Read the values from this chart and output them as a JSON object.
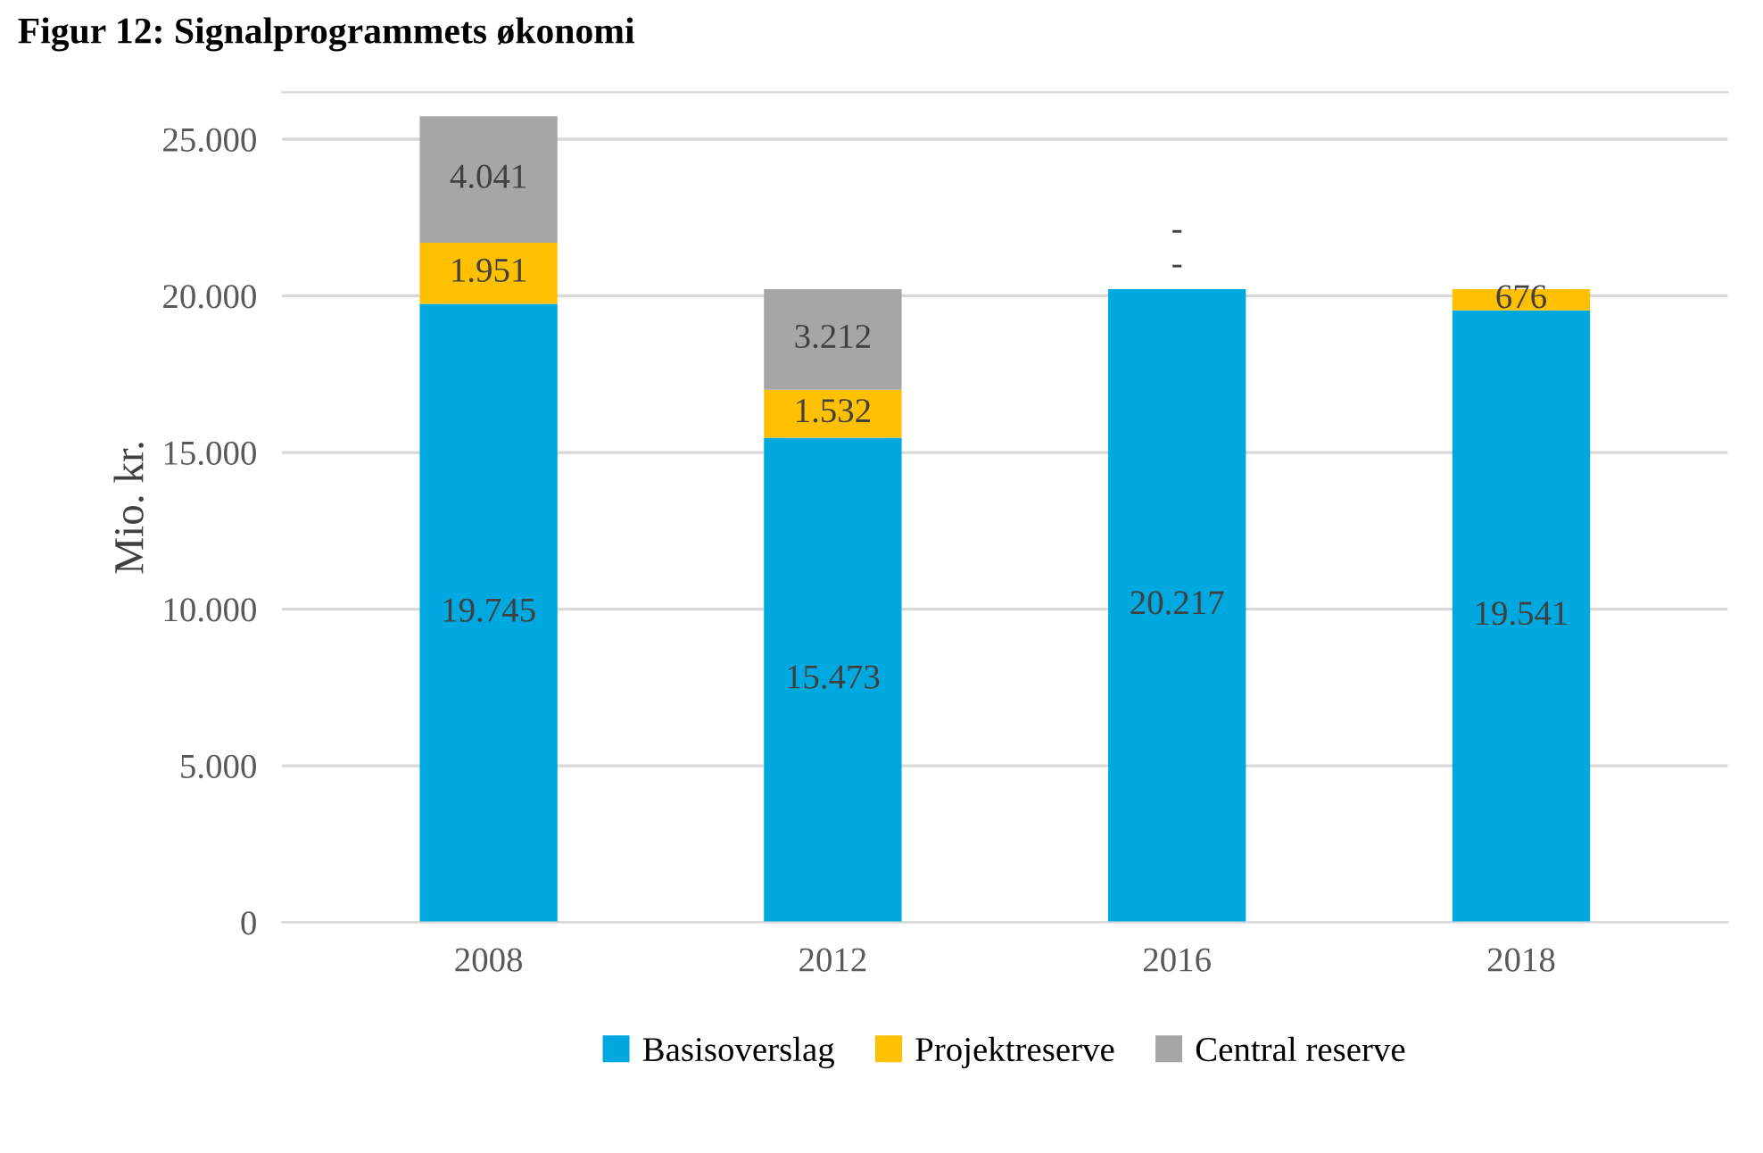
{
  "chart_data": {
    "type": "bar",
    "stacked": true,
    "title": "Figur 12: Signalprogrammets økonomi",
    "ylabel": "Mio. kr.",
    "categories": [
      "2008",
      "2012",
      "2016",
      "2018"
    ],
    "series": [
      {
        "name": "Basisoverslag",
        "color": "#00a8e0",
        "values": [
          19745,
          15473,
          20217,
          19541
        ],
        "value_labels": [
          "19.745",
          "15.473",
          "20.217",
          "19.541"
        ]
      },
      {
        "name": "Projektreserve",
        "color": "#ffc000",
        "values": [
          1951,
          1532,
          0,
          676
        ],
        "value_labels": [
          "1.951",
          "1.532",
          "-",
          "676"
        ]
      },
      {
        "name": "Central reserve",
        "color": "#a6a6a6",
        "values": [
          4041,
          3212,
          0,
          0
        ],
        "value_labels": [
          "4.041",
          "3.212",
          "-",
          null
        ]
      }
    ],
    "ylim": [
      0,
      26500
    ],
    "yticks": [
      0,
      {
        "value": 5000,
        "label": "5.000"
      },
      {
        "value": 10000,
        "label": "10.000"
      },
      {
        "value": 15000,
        "label": "15.000"
      },
      {
        "value": 20000,
        "label": "20.000"
      },
      {
        "value": 25000,
        "label": "25.000"
      }
    ],
    "grid": "y",
    "legend": "bottom"
  }
}
